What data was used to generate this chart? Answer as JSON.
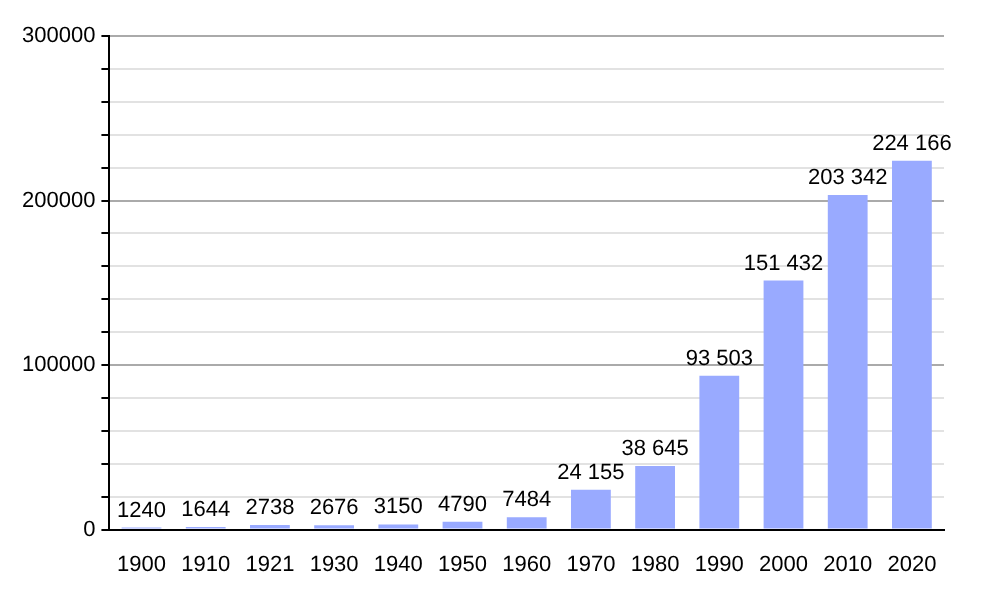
{
  "chart_data": {
    "type": "bar",
    "categories": [
      "1900",
      "1910",
      "1921",
      "1930",
      "1940",
      "1950",
      "1960",
      "1970",
      "1980",
      "1990",
      "2000",
      "2010",
      "2020"
    ],
    "values": [
      1240,
      1644,
      2738,
      2676,
      3150,
      4790,
      7484,
      24155,
      38645,
      93503,
      151432,
      203342,
      224166
    ],
    "value_labels": [
      "1240",
      "1644",
      "2738",
      "2676",
      "3150",
      "4790",
      "7484",
      "24 155",
      "38 645",
      "93 503",
      "151 432",
      "203 342",
      "224 166"
    ],
    "color": "#99aaff",
    "ylim": [
      0,
      300000
    ],
    "yticks": [
      0,
      {
        "value": 20000,
        "label": null
      },
      {
        "value": 40000,
        "label": null
      },
      {
        "value": 60000,
        "label": null
      },
      {
        "value": 80000,
        "label": null
      },
      100000,
      {
        "value": 120000,
        "label": null
      },
      {
        "value": 140000,
        "label": null
      },
      {
        "value": 160000,
        "label": null
      },
      {
        "value": 180000,
        "label": null
      },
      200000,
      {
        "value": 220000,
        "label": null
      },
      {
        "value": 240000,
        "label": null
      },
      {
        "value": 260000,
        "label": null
      },
      {
        "value": 280000,
        "label": null
      },
      300000
    ],
    "grid": "y",
    "legend": false
  }
}
